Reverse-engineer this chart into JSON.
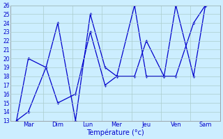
{
  "xlabel": "Température (°c)",
  "background_color": "#cceeff",
  "grid_color": "#aacccc",
  "line_color": "#0000cc",
  "ylim": [
    13,
    26
  ],
  "yticks": [
    13,
    14,
    15,
    16,
    17,
    18,
    19,
    20,
    21,
    22,
    23,
    24,
    25,
    26
  ],
  "series1_x": [
    0.0,
    0.3,
    1.0,
    1.5,
    2.0,
    2.5,
    3.0,
    3.5,
    4.0,
    4.5,
    5.0,
    5.5,
    6.0,
    6.5
  ],
  "series1_y": [
    13,
    20,
    19,
    24,
    13,
    25,
    19,
    18,
    26,
    18,
    18,
    26,
    18,
    26
  ],
  "series2_x": [
    0.0,
    0.5,
    1.0,
    1.5,
    2.0,
    2.5,
    3.0,
    3.5,
    4.0,
    4.5,
    5.0,
    5.5,
    6.0,
    6.5
  ],
  "series2_y": [
    13,
    14,
    19,
    15,
    16,
    23,
    17,
    18,
    18,
    22,
    18,
    18,
    24,
    26
  ],
  "xtick_positions": [
    0.25,
    1.25,
    2.25,
    3.25,
    4.25,
    5.25,
    6.25
  ],
  "vline_positions": [
    0,
    1,
    2,
    3,
    4,
    5,
    6,
    7
  ],
  "day_labels": [
    "Mar",
    "Dim",
    "Lun",
    "Mer",
    "Jeu",
    "Ven",
    "Sam"
  ],
  "xlim": [
    -0.05,
    7.0
  ]
}
